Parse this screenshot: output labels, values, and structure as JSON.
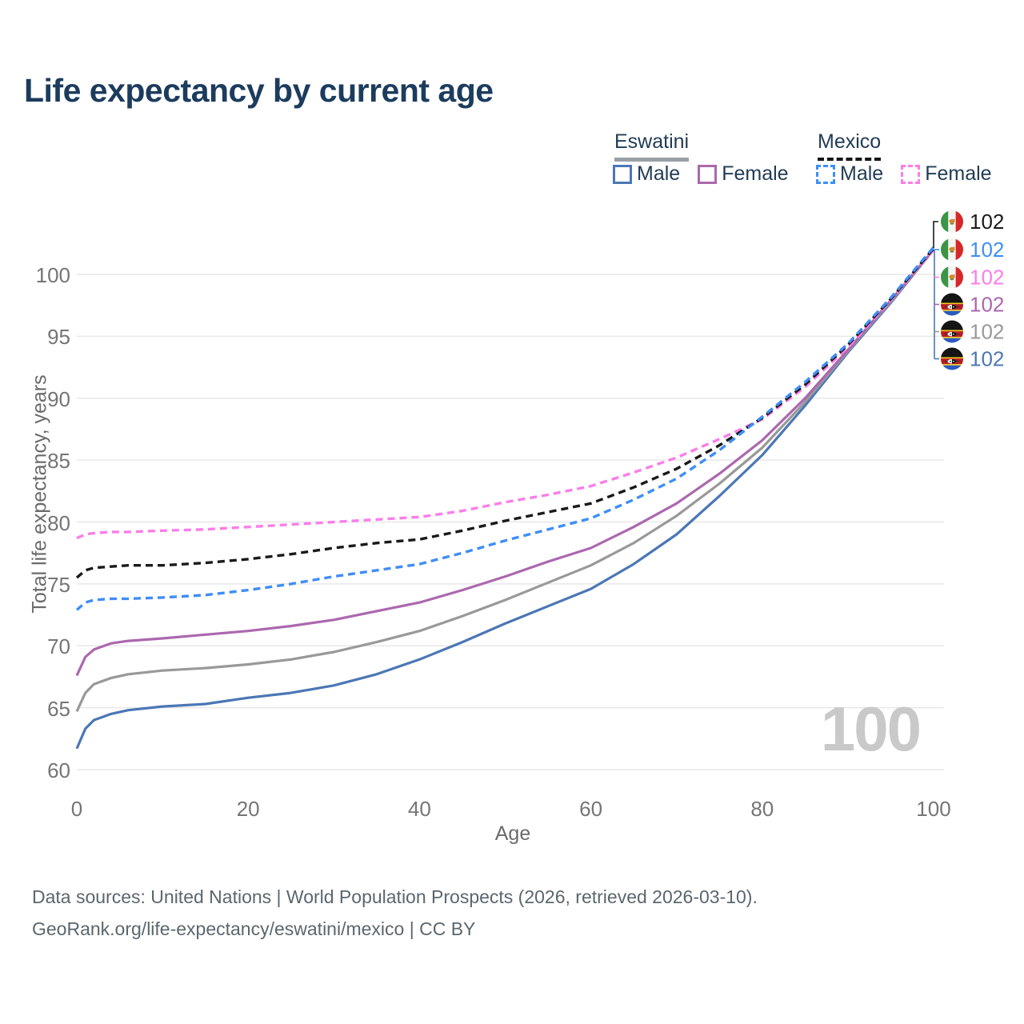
{
  "title": "Life expectancy by current age",
  "legend": {
    "groups": [
      {
        "name": "Eswatini",
        "underline_style": "solid",
        "underline_color": "#9aa0a6",
        "items": [
          {
            "label": "Male",
            "color": "#4b77b5",
            "dashed": false
          },
          {
            "label": "Female",
            "color": "#ab68ae",
            "dashed": false
          }
        ]
      },
      {
        "name": "Mexico",
        "underline_style": "dashed",
        "underline_color": "#151515",
        "items": [
          {
            "label": "Male",
            "color": "#3f8ef6",
            "dashed": true
          },
          {
            "label": "Female",
            "color": "#fb7de9",
            "dashed": true
          }
        ]
      }
    ]
  },
  "axes": {
    "x": {
      "title": "Age",
      "ticks": [
        0,
        20,
        40,
        60,
        80,
        100
      ],
      "range": [
        0,
        100
      ]
    },
    "y": {
      "title": "Total life expectancy, years",
      "ticks": [
        60,
        65,
        70,
        75,
        80,
        85,
        90,
        95,
        100
      ],
      "range": [
        60,
        103
      ]
    }
  },
  "watermark": "100",
  "sources": {
    "line1": "Data sources: United Nations | World Population Prospects (2026, retrieved 2026-03-10).",
    "line2": "GeoRank.org/life-expectancy/eswatini/mexico | CC BY"
  },
  "chart_data": {
    "type": "line",
    "xlabel": "Age",
    "ylabel": "Total life expectancy, years",
    "xlim": [
      0,
      100
    ],
    "ylim": [
      60,
      103
    ],
    "grid": "horizontal",
    "legend_position": "top-right",
    "x": [
      0,
      1,
      2,
      4,
      6,
      10,
      15,
      20,
      25,
      30,
      35,
      40,
      45,
      50,
      55,
      60,
      65,
      70,
      75,
      80,
      85,
      90,
      95,
      100
    ],
    "series": [
      {
        "name": "Mexico Total",
        "country": "Mexico",
        "flag": "mexico",
        "color": "#1a1a1a",
        "dashed": true,
        "end_label": "102",
        "values": [
          75.5,
          76.1,
          76.3,
          76.4,
          76.5,
          76.5,
          76.7,
          77.0,
          77.4,
          77.9,
          78.3,
          78.6,
          79.3,
          80.1,
          80.8,
          81.5,
          82.8,
          84.3,
          86.2,
          88.4,
          91.1,
          94.3,
          98.0,
          102.1
        ]
      },
      {
        "name": "Mexico Male",
        "country": "Mexico",
        "flag": "mexico",
        "color": "#3f8ef6",
        "dashed": true,
        "end_label": "102",
        "values": [
          72.9,
          73.5,
          73.7,
          73.8,
          73.8,
          73.9,
          74.1,
          74.5,
          75.0,
          75.6,
          76.1,
          76.6,
          77.5,
          78.5,
          79.4,
          80.3,
          81.8,
          83.5,
          85.8,
          88.5,
          91.3,
          94.4,
          98.1,
          102.2
        ]
      },
      {
        "name": "Mexico Female",
        "country": "Mexico",
        "flag": "mexico",
        "color": "#fb7de9",
        "dashed": true,
        "end_label": "102",
        "values": [
          78.7,
          79.0,
          79.1,
          79.2,
          79.2,
          79.3,
          79.4,
          79.6,
          79.8,
          80.0,
          80.2,
          80.4,
          80.9,
          81.6,
          82.2,
          82.9,
          84.0,
          85.2,
          86.7,
          88.3,
          90.9,
          94.1,
          97.9,
          102.0
        ]
      },
      {
        "name": "Eswatini Female",
        "country": "Eswatini",
        "flag": "eswatini",
        "color": "#ab68ae",
        "dashed": false,
        "end_label": "102",
        "values": [
          67.6,
          69.1,
          69.7,
          70.2,
          70.4,
          70.6,
          70.9,
          71.2,
          71.6,
          72.1,
          72.8,
          73.5,
          74.5,
          75.6,
          76.8,
          77.9,
          79.6,
          81.5,
          83.9,
          86.6,
          90.0,
          93.9,
          97.9,
          102.0
        ]
      },
      {
        "name": "Eswatini Total",
        "country": "Eswatini",
        "flag": "eswatini",
        "color": "#999999",
        "dashed": false,
        "end_label": "102",
        "values": [
          64.7,
          66.2,
          66.9,
          67.4,
          67.7,
          68.0,
          68.2,
          68.5,
          68.9,
          69.5,
          70.3,
          71.2,
          72.4,
          73.7,
          75.1,
          76.5,
          78.3,
          80.5,
          83.1,
          86.0,
          89.7,
          93.8,
          97.8,
          102.0
        ]
      },
      {
        "name": "Eswatini Male",
        "country": "Eswatini",
        "flag": "eswatini",
        "color": "#4b77b5",
        "dashed": false,
        "end_label": "102",
        "values": [
          61.7,
          63.3,
          64.0,
          64.5,
          64.8,
          65.1,
          65.3,
          65.8,
          66.2,
          66.8,
          67.7,
          68.9,
          70.3,
          71.8,
          73.2,
          74.6,
          76.6,
          79.0,
          82.1,
          85.4,
          89.4,
          93.7,
          97.7,
          102.0
        ]
      }
    ],
    "flag_colors": {
      "mexico": {
        "green": "#3c9447",
        "white": "#f4f4f4",
        "red": "#d62828",
        "eagle": "#cf8a2e"
      },
      "eswatini": {
        "black": "#151515",
        "yellow": "#f4c916",
        "red": "#b61d24",
        "blue": "#2b5bbf",
        "shield": "#f2f2f2"
      }
    }
  }
}
